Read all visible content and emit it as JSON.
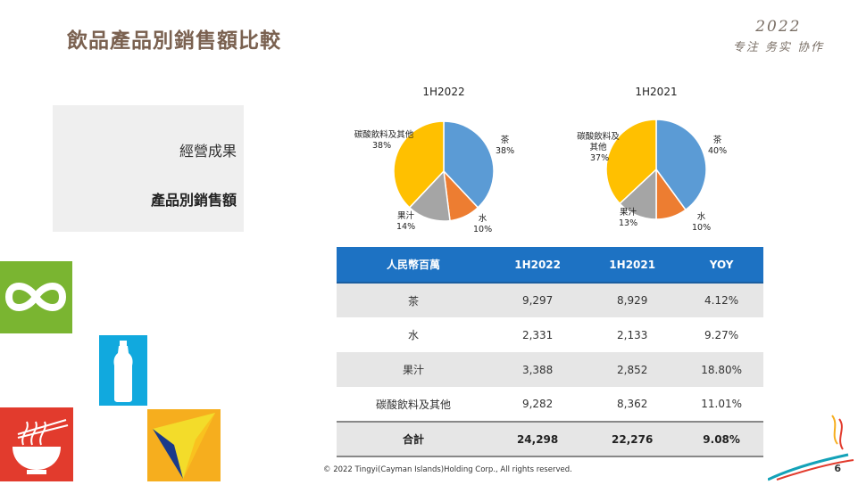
{
  "header": {
    "title": "飲品產品別銷售額比較",
    "brand_year": "2022",
    "brand_slogan": "专注 务实 协作"
  },
  "nav": {
    "item1": "經營成果",
    "item2": "產品別銷售額"
  },
  "colors": {
    "tea": "#5b9bd5",
    "water": "#ed7d31",
    "juice": "#a5a5a5",
    "other": "#ffc000",
    "table_header": "#1d72c3"
  },
  "chart_data": [
    {
      "type": "pie",
      "title": "1H2022",
      "slices": [
        {
          "label": "茶",
          "value": 38,
          "display": "38%"
        },
        {
          "label": "水",
          "value": 10,
          "display": "10%"
        },
        {
          "label": "果汁",
          "value": 14,
          "display": "14%"
        },
        {
          "label": "碳酸飲料及其他",
          "value": 38,
          "display": "38%"
        }
      ]
    },
    {
      "type": "pie",
      "title": "1H2021",
      "slices": [
        {
          "label": "茶",
          "value": 40,
          "display": "40%"
        },
        {
          "label": "水",
          "value": 10,
          "display": "10%"
        },
        {
          "label": "果汁",
          "value": 13,
          "display": "13%"
        },
        {
          "label": "碳酸飲料及其他",
          "value": 37,
          "display": "37%"
        }
      ]
    },
    {
      "type": "table",
      "columns": [
        "人民幣百萬",
        "1H2022",
        "1H2021",
        "YOY"
      ],
      "rows": [
        [
          "茶",
          "9,297",
          "8,929",
          "4.12%"
        ],
        [
          "水",
          "2,331",
          "2,133",
          "9.27%"
        ],
        [
          "果汁",
          "3,388",
          "2,852",
          "18.80%"
        ],
        [
          "碳酸飲料及其他",
          "9,282",
          "8,362",
          "11.01%"
        ],
        [
          "合計",
          "24,298",
          "22,276",
          "9.08%"
        ]
      ]
    }
  ],
  "footer": {
    "copyright": "© 2022 Tingyi(Cayman Islands)Holding Corp., All rights reserved.",
    "page": "6"
  }
}
